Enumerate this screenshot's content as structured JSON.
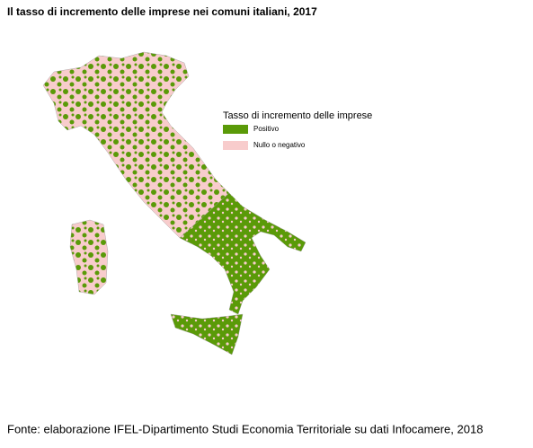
{
  "title": "Il tasso di incremento delle imprese nei comuni italiani, 2017",
  "legend": {
    "title": "Tasso di incremento delle imprese",
    "items": [
      {
        "label": "Positivo",
        "color": "#5a9a08"
      },
      {
        "label": "Nullo o negativo",
        "color": "#f8cccc"
      }
    ]
  },
  "source": "Fonte: elaborazione IFEL-Dipartimento Studi Economia Territoriale su dati Infocamere, 2018"
}
